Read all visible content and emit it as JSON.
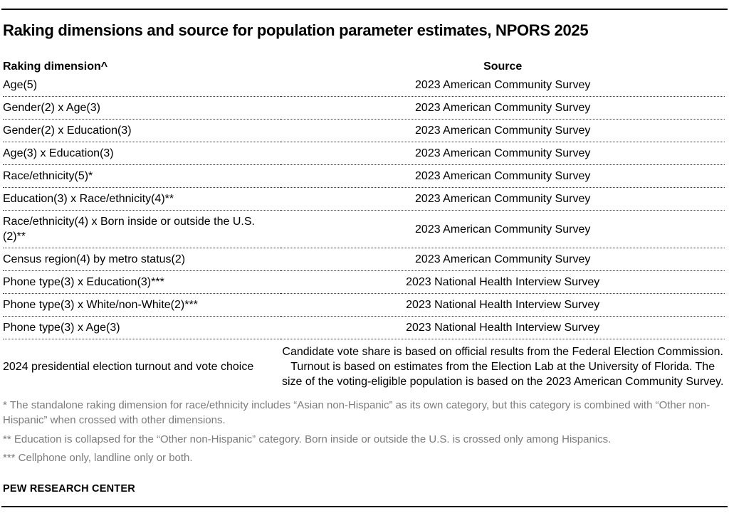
{
  "title": "Raking dimensions and source for population parameter estimates, NPORS 2025",
  "table": {
    "headers": {
      "dimension": "Raking dimension^",
      "source": "Source"
    },
    "rows": [
      {
        "dimension": "Age(5)",
        "source": "2023 American Community Survey"
      },
      {
        "dimension": "Gender(2) x Age(3)",
        "source": "2023 American Community Survey"
      },
      {
        "dimension": "Gender(2) x Education(3)",
        "source": "2023 American Community Survey"
      },
      {
        "dimension": "Age(3) x Education(3)",
        "source": "2023 American Community Survey"
      },
      {
        "dimension": "Race/ethnicity(5)*",
        "source": "2023 American Community Survey"
      },
      {
        "dimension": "Education(3) x Race/ethnicity(4)**",
        "source": "2023 American Community Survey"
      },
      {
        "dimension": "Race/ethnicity(4) x Born inside or outside the U.S.(2)**",
        "source": "2023 American Community Survey"
      },
      {
        "dimension": "Census region(4) by metro status(2)",
        "source": "2023 American Community Survey"
      },
      {
        "dimension": "Phone type(3) x Education(3)***",
        "source": "2023 National Health Interview Survey"
      },
      {
        "dimension": "Phone type(3) x White/non-White(2)***",
        "source": "2023 National Health Interview Survey"
      },
      {
        "dimension": "Phone type(3) x Age(3)",
        "source": "2023 National Health Interview Survey"
      },
      {
        "dimension": "2024 presidential election turnout and vote choice",
        "source": "Candidate vote share is based on official results from the Federal Election Commission. Turnout is based on estimates from the Election Lab at the University of Florida. The size of the voting-eligible population is based on the 2023 American Community Survey."
      }
    ]
  },
  "footnotes": [
    "* The standalone raking dimension for race/ethnicity includes “Asian non-Hispanic” as its own category, but this category is combined with “Other non-Hispanic” when crossed with other dimensions.",
    "** Education is collapsed for the “Other non-Hispanic” category. Born inside or outside the U.S. is crossed only among Hispanics.",
    "*** Cellphone only, landline only or both."
  ],
  "credit": "PEW RESEARCH CENTER",
  "colors": {
    "text": "#000000",
    "footnote_gray": "#7b7b7b",
    "rule_black": "#000000"
  }
}
